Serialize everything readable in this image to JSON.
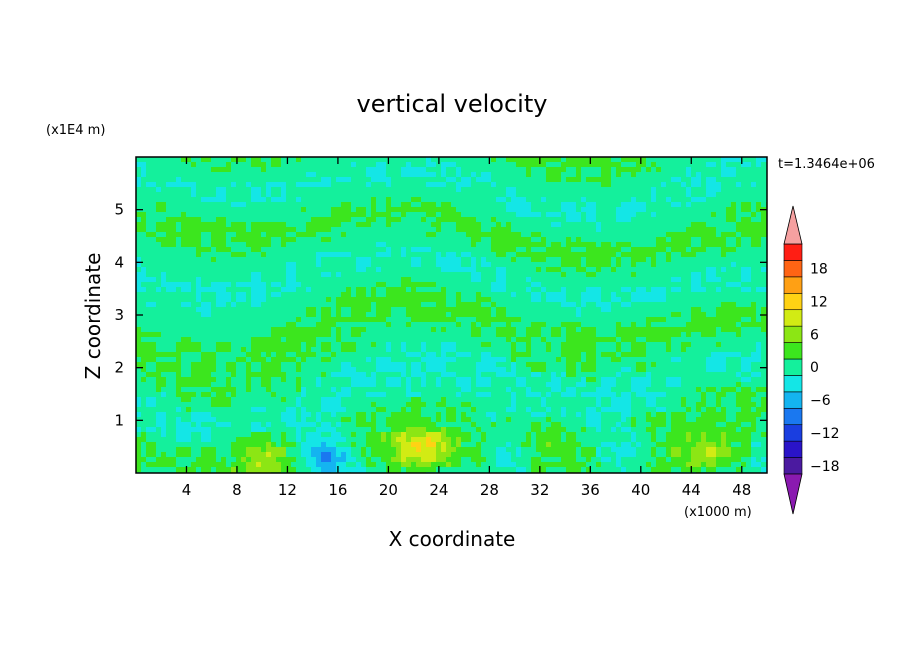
{
  "chart_data": {
    "type": "heatmap",
    "title": "vertical velocity",
    "xlabel": "X coordinate",
    "ylabel": "Z coordinate",
    "x_unit": "(x1000 m)",
    "y_unit": "(x1E4 m)",
    "time_label": "t=1.3464e+06",
    "xlim": [
      0,
      50
    ],
    "ylim": [
      0,
      6
    ],
    "x_ticks": [
      "4",
      "8",
      "12",
      "16",
      "20",
      "24",
      "28",
      "32",
      "36",
      "40",
      "44",
      "48"
    ],
    "y_ticks": [
      "1",
      "2",
      "3",
      "4",
      "5"
    ],
    "colorbar": {
      "tick_labels": [
        "18",
        "12",
        "6",
        "0",
        "−6",
        "−12",
        "−18"
      ],
      "levels": [
        -21,
        -18,
        -15,
        -12,
        -9,
        -6,
        -3,
        0,
        3,
        6,
        9,
        12,
        15,
        18,
        21
      ],
      "colors": [
        "#7a1ca8",
        "#4b1aa0",
        "#2a14c8",
        "#1a3ee0",
        "#1a78f0",
        "#14b4f0",
        "#14e6e6",
        "#14f09c",
        "#3ce61e",
        "#8ce614",
        "#d2eb14",
        "#ffd214",
        "#ffa014",
        "#ff6414",
        "#ff1e14",
        "#f5a0a0"
      ],
      "under_color": "#8a1ab0",
      "over_color": "#f5a0a0"
    },
    "background_level": 0,
    "features": [
      {
        "x": 10,
        "z": 0.35,
        "peak": 6
      },
      {
        "x": 15,
        "z": 0.3,
        "peak": -9
      },
      {
        "x": 22.5,
        "z": 0.45,
        "peak": 10
      },
      {
        "x": 29.5,
        "z": 0.3,
        "peak": -5
      },
      {
        "x": 32.5,
        "z": 0.6,
        "peak": 4
      },
      {
        "x": 38.5,
        "z": 0.35,
        "peak": -4
      },
      {
        "x": 45.5,
        "z": 0.35,
        "peak": 6
      }
    ]
  }
}
